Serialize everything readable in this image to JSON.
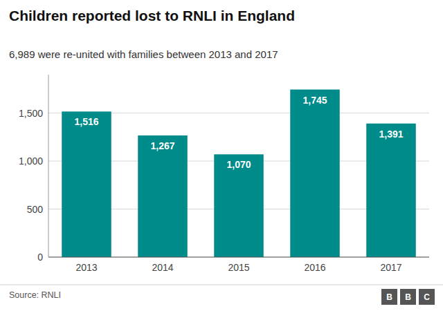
{
  "chart_data": {
    "type": "bar",
    "title": "Children reported lost to RNLI in England",
    "subtitle": "6,989 were re-united with families between 2013 and 2017",
    "source": "Source: RNLI",
    "logo": [
      "B",
      "B",
      "C"
    ],
    "categories": [
      "2013",
      "2014",
      "2015",
      "2016",
      "2017"
    ],
    "values": [
      1516,
      1267,
      1070,
      1745,
      1391
    ],
    "value_labels": [
      "1,516",
      "1,267",
      "1,070",
      "1,745",
      "1,391"
    ],
    "data_labels": true,
    "color": "#008B8B",
    "ylim": [
      0,
      1900
    ],
    "yticks": [
      0,
      500,
      {
        "value": 1000,
        "label": "1,000"
      },
      {
        "value": 1500,
        "label": "1,500"
      }
    ],
    "grid": true
  }
}
